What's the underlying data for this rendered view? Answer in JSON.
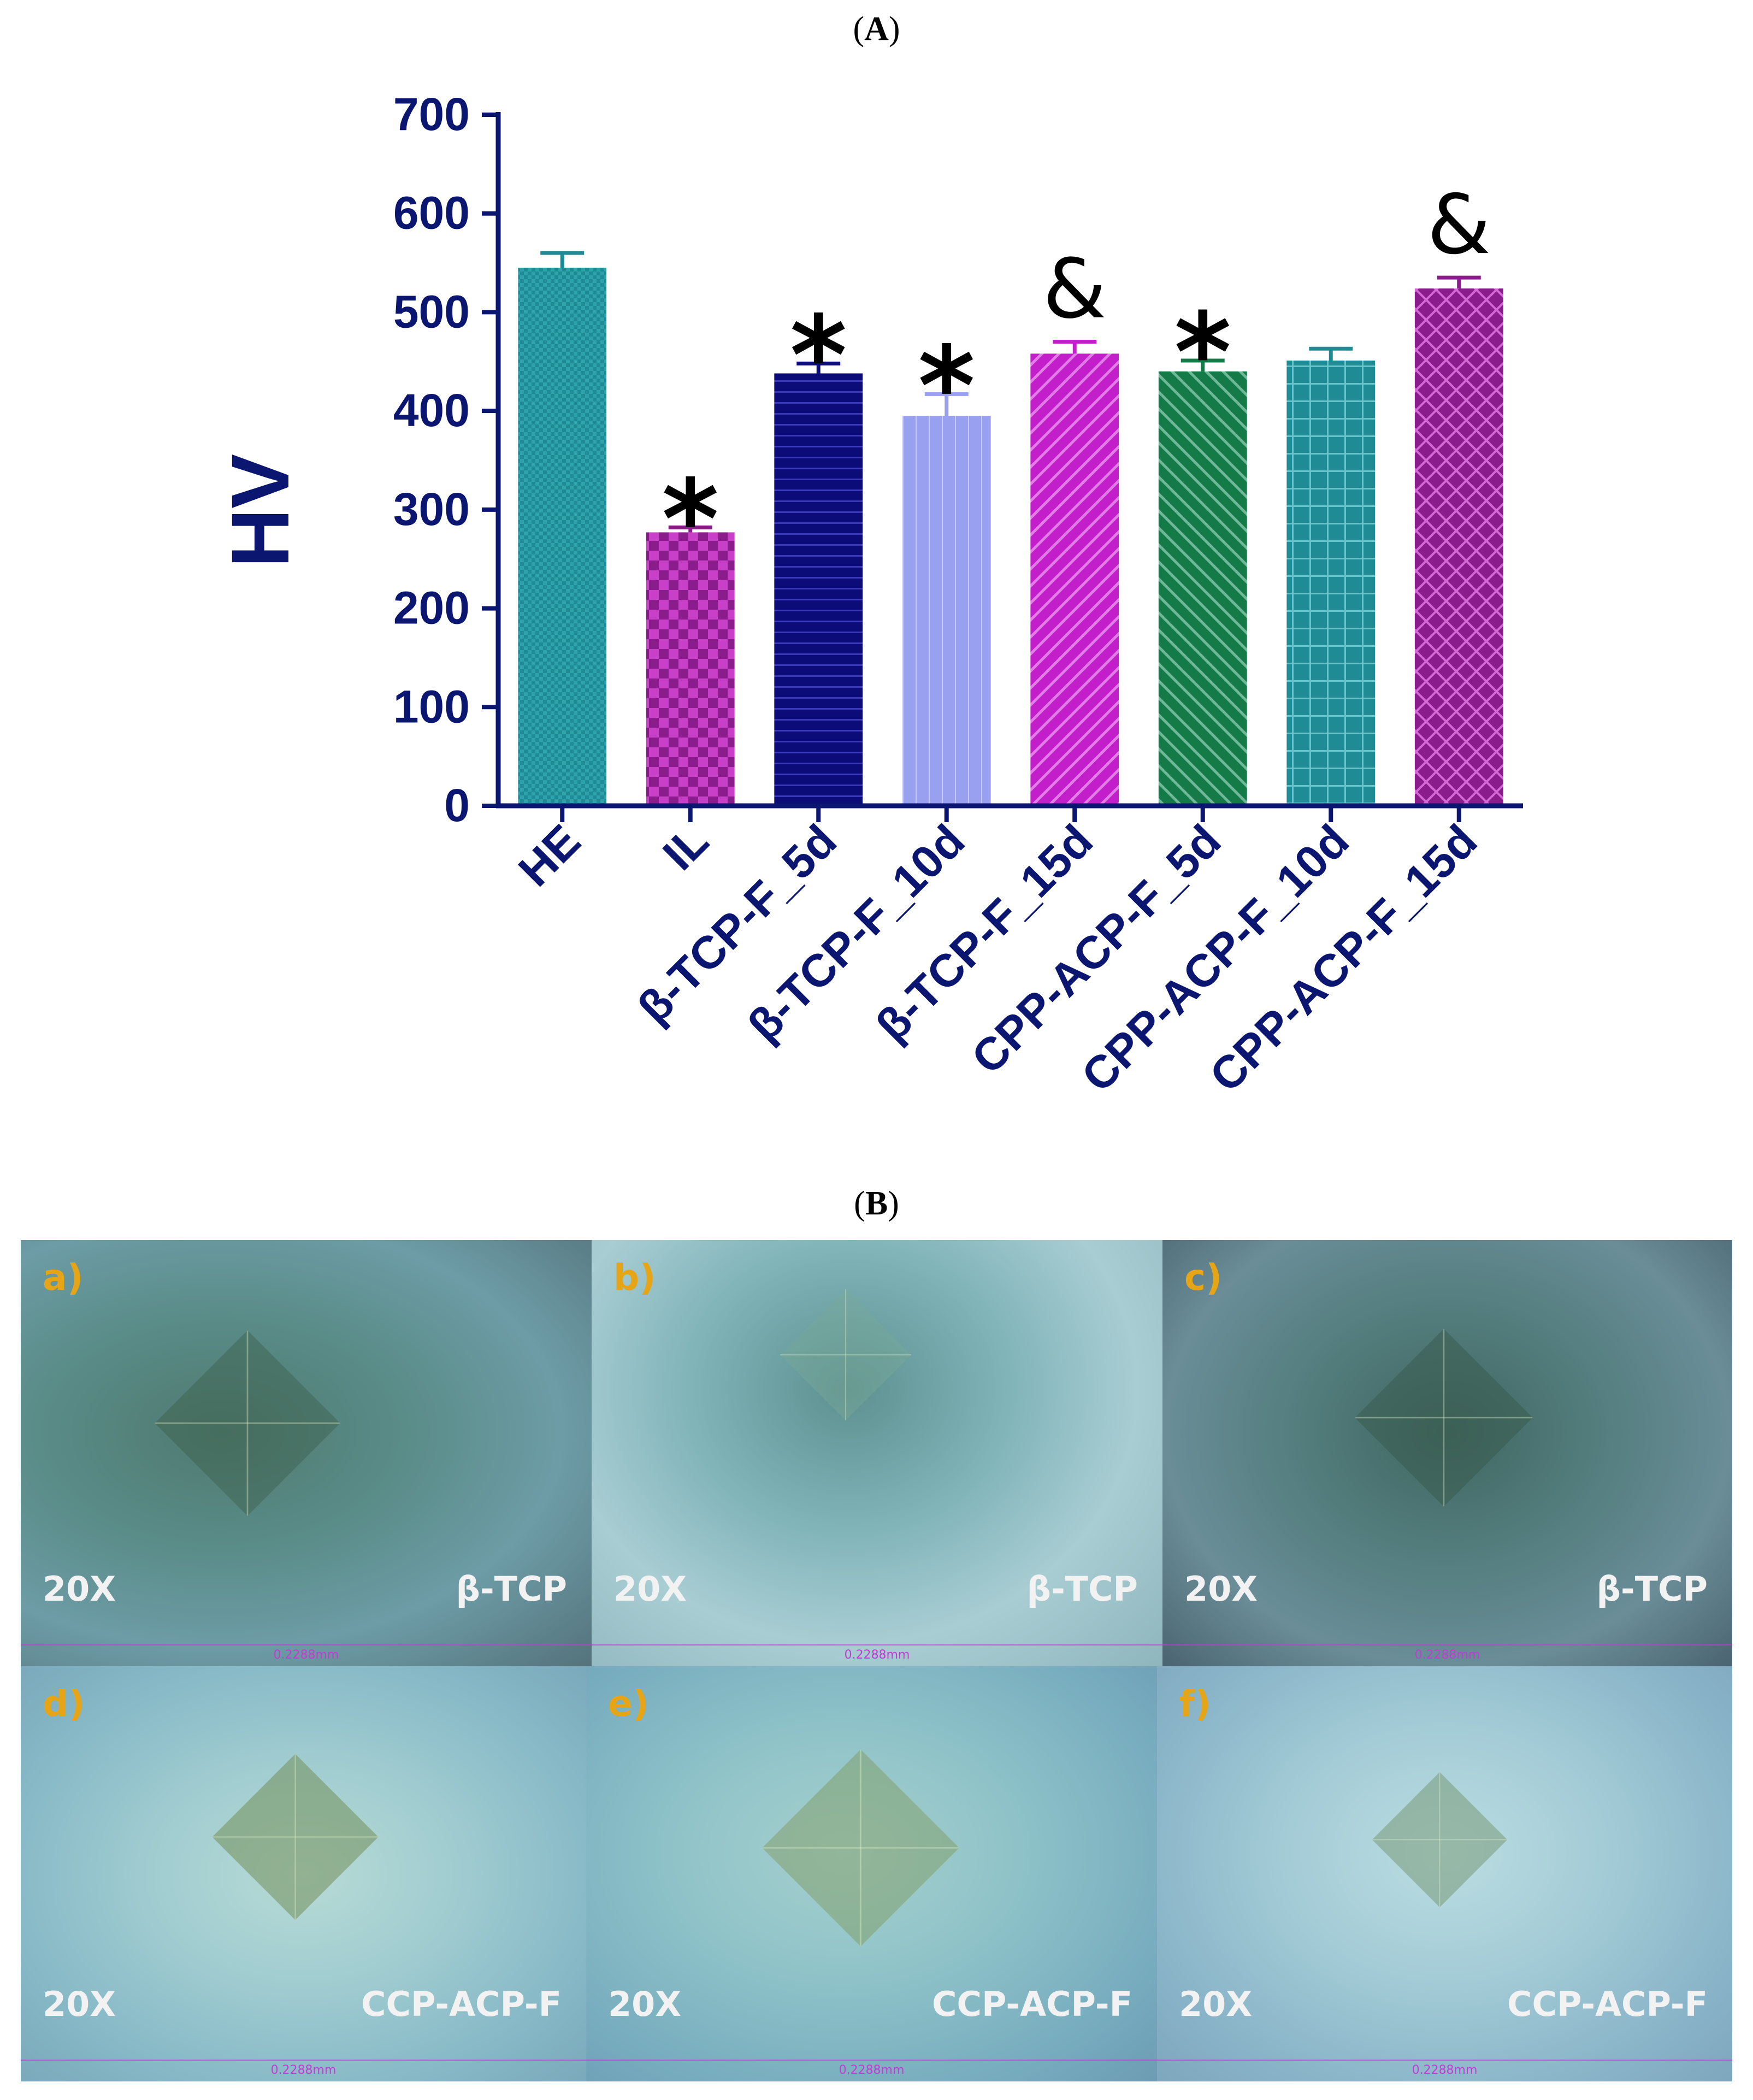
{
  "panel_a_label": "A",
  "panel_b_label": "B",
  "chart_data": {
    "type": "bar",
    "title": "",
    "xlabel": "",
    "ylabel": "HV",
    "ylim": [
      0,
      700
    ],
    "yticks": [
      0,
      100,
      200,
      300,
      400,
      500,
      600,
      700
    ],
    "grid": false,
    "categories": [
      "HE",
      "IL",
      "β-TCP-F_5d",
      "β-TCP-F_10d",
      "β-TCP-F_15d",
      "CPP-ACP-F_5d",
      "CPP-ACP-F_10d",
      "CPP-ACP-F_15d"
    ],
    "values": [
      545,
      277,
      438,
      395,
      458,
      440,
      451,
      524
    ],
    "errors": [
      15,
      5,
      10,
      22,
      12,
      11,
      12,
      11
    ],
    "annotations": [
      "",
      "*",
      "*",
      "*",
      "&",
      "*",
      "",
      "&"
    ],
    "bar_colors": [
      "#1f8c95",
      "#8a1c8b",
      "#0c0c78",
      "#9aa0f0",
      "#c21ec9",
      "#137a48",
      "#1f8c95",
      "#8a1c8b"
    ],
    "axis_color": "#0a1670"
  },
  "photos": [
    {
      "tag": "a)",
      "magnification": "20X",
      "material": "β-TCP",
      "scale": "0.2288mm"
    },
    {
      "tag": "b)",
      "magnification": "20X",
      "material": "β-TCP",
      "scale": "0.2288mm"
    },
    {
      "tag": "c)",
      "magnification": "20X",
      "material": "β-TCP",
      "scale": "0.2288mm"
    },
    {
      "tag": "d)",
      "magnification": "20X",
      "material": "CCP-ACP-F",
      "scale": "0.2288mm"
    },
    {
      "tag": "e)",
      "magnification": "20X",
      "material": "CCP-ACP-F",
      "scale": "0.2288mm"
    },
    {
      "tag": "f)",
      "magnification": "20X",
      "material": "CCP-ACP-F",
      "scale": "0.2288mm"
    }
  ]
}
